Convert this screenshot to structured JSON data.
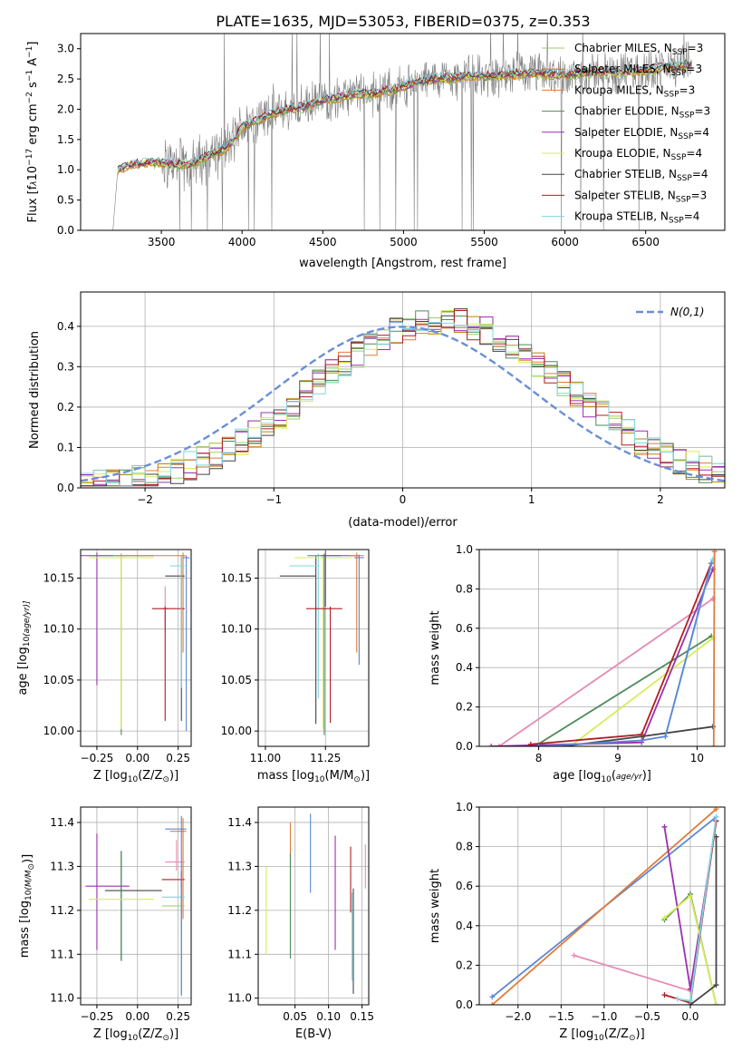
{
  "figure_title": "PLATE=1635, MJD=53053, FIBERID=0375, z=0.353",
  "colors": {
    "Chabrier MILES": "#9acd72",
    "Salpeter MILES": "#b8860b",
    "Kroupa MILES": "#e07b39",
    "Chabrier ELODIE": "#4e8a5c",
    "Salpeter ELODIE": "#9b30b0",
    "Kroupa ELODIE": "#d8ec5a",
    "Chabrier STELIB": "#444444",
    "Salpeter STELIB": "#b01e24",
    "Kroupa STELIB": "#7fd6e0",
    "data": "#808080",
    "normal": "#6a8fd8",
    "blue": "#5b86d6",
    "pink": "#e68ab5"
  },
  "chart_data": [
    {
      "id": "spectrum",
      "type": "line",
      "title": "PLATE=1635, MJD=53053, FIBERID=0375, z=0.353",
      "xlabel": "wavelength [Angstrom, rest frame]",
      "ylabel_parts": [
        "Flux [f",
        "λ",
        "10",
        "−17",
        " erg cm",
        "−2",
        " s",
        "−1",
        " A",
        "−1",
        "]"
      ],
      "xlim": [
        3000,
        6990
      ],
      "ylim": [
        0,
        3.25
      ],
      "xticks": [
        3500,
        4000,
        4500,
        5000,
        5500,
        6000,
        6500
      ],
      "yticks": [
        0.0,
        0.5,
        1.0,
        1.5,
        2.0,
        2.5,
        3.0
      ],
      "continuum": {
        "x": [
          3200,
          3230,
          3300,
          3400,
          3500,
          3600,
          3700,
          3800,
          3900,
          3950,
          4000,
          4100,
          4200,
          4300,
          4400,
          4500,
          4600,
          4700,
          4800,
          4900,
          5000,
          5100,
          5200,
          5300,
          5400,
          5500,
          5600,
          5700,
          5800,
          5900,
          6000,
          6100,
          6200,
          6300,
          6400,
          6500,
          6600,
          6700,
          6790
        ],
        "y": [
          0.0,
          1.0,
          1.08,
          1.12,
          1.12,
          1.08,
          1.1,
          1.25,
          1.35,
          1.5,
          1.7,
          1.82,
          1.95,
          2.0,
          2.05,
          2.15,
          2.2,
          2.25,
          2.25,
          2.3,
          2.38,
          2.45,
          2.5,
          2.52,
          2.55,
          2.55,
          2.55,
          2.58,
          2.6,
          2.58,
          2.55,
          2.6,
          2.62,
          2.6,
          2.62,
          2.65,
          2.68,
          2.7,
          2.75
        ]
      },
      "legend": [
        "Chabrier MILES, N_SSP=3",
        "Salpeter MILES, N_SSP=3",
        "Kroupa MILES, N_SSP=3",
        "Chabrier ELODIE, N_SSP=3",
        "Salpeter ELODIE, N_SSP=4",
        "Kroupa ELODIE, N_SSP=4",
        "Chabrier STELIB, N_SSP=4",
        "Salpeter STELIB, N_SSP=3",
        "Kroupa STELIB, N_SSP=4"
      ],
      "legend_position": "top-right"
    },
    {
      "id": "residuals",
      "type": "step",
      "xlabel": "(data-model)/error",
      "ylabel": "Normed distribution",
      "xlim": [
        -2.5,
        2.5
      ],
      "ylim": [
        0,
        0.485
      ],
      "xticks": [
        -2,
        -1,
        0,
        1,
        2
      ],
      "yticks": [
        0.0,
        0.1,
        0.2,
        0.3,
        0.4
      ],
      "grid": true,
      "bin_width": 0.1,
      "reference": "N(0,1)",
      "legend_position": "top-right"
    },
    {
      "id": "age-vs-Z",
      "type": "errorbar",
      "xlabel_parts": [
        "Z [log",
        "10",
        "(Z/Z",
        "⊙",
        ")]"
      ],
      "ylabel_parts": [
        "age  [log",
        "10",
        "(age/yr)]"
      ],
      "xlim": [
        -0.35,
        0.33
      ],
      "ylim": [
        9.985,
        10.178
      ],
      "xticks": [
        -0.25,
        0.0,
        0.25
      ],
      "yticks": [
        10.0,
        10.05,
        10.1,
        10.15
      ],
      "grid": true
    },
    {
      "id": "age-vs-mass",
      "type": "errorbar",
      "xlabel_parts": [
        "mass [log",
        "10",
        "(M/M",
        "⊙",
        ")]"
      ],
      "xlim": [
        10.97,
        11.43
      ],
      "ylim": [
        9.985,
        10.178
      ],
      "xticks": [
        11.0,
        11.25
      ],
      "yticks": [
        10.0,
        10.05,
        10.1,
        10.15
      ],
      "grid": true
    },
    {
      "id": "weight-vs-age",
      "type": "line",
      "xlabel_parts": [
        "age  [log",
        "10",
        "(age/yr)]"
      ],
      "ylabel": "mass weight",
      "xlim": [
        7.25,
        10.35
      ],
      "ylim": [
        0,
        1.0
      ],
      "xticks": [
        8,
        9,
        10
      ],
      "yticks": [
        0.0,
        0.2,
        0.4,
        0.6,
        0.8,
        1.0
      ],
      "grid": true,
      "series": [
        {
          "color_key": "pink",
          "x": [
            7.5,
            10.2
          ],
          "y": [
            0.0,
            0.75
          ]
        },
        {
          "color_key": "Chabrier ELODIE",
          "x": [
            7.95,
            10.18
          ],
          "y": [
            0.0,
            0.56
          ]
        },
        {
          "color_key": "Kroupa ELODIE",
          "x": [
            8.4,
            10.2
          ],
          "y": [
            0.0,
            0.55
          ]
        },
        {
          "color_key": "Salpeter ELODIE",
          "x": [
            7.4,
            9.3,
            10.2
          ],
          "y": [
            0.0,
            0.02,
            0.9
          ]
        },
        {
          "color_key": "Chabrier STELIB",
          "x": [
            8.3,
            9.3,
            10.2
          ],
          "y": [
            0.0,
            0.05,
            0.1
          ]
        },
        {
          "color_key": "Salpeter STELIB",
          "x": [
            7.9,
            9.3,
            10.18
          ],
          "y": [
            0.01,
            0.06,
            0.93
          ]
        },
        {
          "color_key": "Kroupa STELIB",
          "x": [
            9.6,
            10.2
          ],
          "y": [
            0.05,
            0.95
          ]
        },
        {
          "color_key": "blue",
          "x": [
            8.0,
            9.3,
            9.6,
            10.18
          ],
          "y": [
            0.0,
            0.03,
            0.05,
            0.93
          ]
        },
        {
          "color_key": "Kroupa MILES",
          "x": [
            10.21,
            10.22
          ],
          "y": [
            0.0,
            0.99
          ]
        }
      ]
    },
    {
      "id": "mass-vs-Z",
      "type": "errorbar",
      "xlabel_parts": [
        "Z [log",
        "10",
        "(Z/Z",
        "⊙",
        ")]"
      ],
      "ylabel_parts": [
        "mass [log",
        "10",
        "(M/M",
        "⊙",
        ")]"
      ],
      "xlim": [
        -0.35,
        0.33
      ],
      "ylim": [
        10.985,
        11.435
      ],
      "xticks": [
        -0.25,
        0.0,
        0.25
      ],
      "yticks": [
        11.0,
        11.1,
        11.2,
        11.3,
        11.4
      ],
      "grid": true
    },
    {
      "id": "mass-vs-EBV",
      "type": "errorbar",
      "xlabel": "E(B-V)",
      "xlim": [
        -0.005,
        0.16
      ],
      "ylim": [
        10.985,
        11.435
      ],
      "xticks": [
        0.05,
        0.1,
        0.15
      ],
      "yticks": [
        11.0,
        11.1,
        11.2,
        11.3,
        11.4
      ],
      "grid": true
    },
    {
      "id": "weight-vs-Z",
      "type": "line",
      "xlabel_parts": [
        "Z [log",
        "10",
        "(Z/Z",
        "⊙",
        ")]"
      ],
      "ylabel": "mass weight",
      "xlim": [
        -2.45,
        0.4
      ],
      "ylim": [
        0,
        1.0
      ],
      "xticks": [
        -2.0,
        -1.5,
        -1.0,
        -0.5,
        0.0
      ],
      "yticks": [
        0.0,
        0.2,
        0.4,
        0.6,
        0.8,
        1.0
      ],
      "grid": true,
      "series": [
        {
          "color_key": "blue",
          "x": [
            -2.3,
            0.3
          ],
          "y": [
            0.04,
            0.95
          ]
        },
        {
          "color_key": "Kroupa MILES",
          "x": [
            -2.3,
            0.3
          ],
          "y": [
            0.0,
            0.99
          ]
        },
        {
          "color_key": "pink",
          "x": [
            -1.35,
            0.0
          ],
          "y": [
            0.25,
            0.07
          ]
        },
        {
          "color_key": "Salpeter ELODIE",
          "x": [
            -0.3,
            0.0,
            0.3
          ],
          "y": [
            0.9,
            0.08,
            0.93
          ]
        },
        {
          "color_key": "Chabrier ELODIE",
          "x": [
            -0.3,
            0.0,
            0.3
          ],
          "y": [
            0.43,
            0.56,
            0.0
          ]
        },
        {
          "color_key": "Kroupa ELODIE",
          "x": [
            -0.3,
            0.0,
            0.3
          ],
          "y": [
            0.44,
            0.55,
            0.0
          ]
        },
        {
          "color_key": "Salpeter STELIB",
          "x": [
            -0.3,
            0.0,
            0.3
          ],
          "y": [
            0.05,
            0.01,
            0.93
          ]
        },
        {
          "color_key": "Chabrier STELIB",
          "x": [
            0.0,
            0.3,
            0.3
          ],
          "y": [
            0.0,
            0.1,
            0.85
          ]
        },
        {
          "color_key": "Kroupa STELIB",
          "x": [
            -0.15,
            0.0,
            0.3
          ],
          "y": [
            0.03,
            0.02,
            0.95
          ]
        }
      ]
    }
  ]
}
